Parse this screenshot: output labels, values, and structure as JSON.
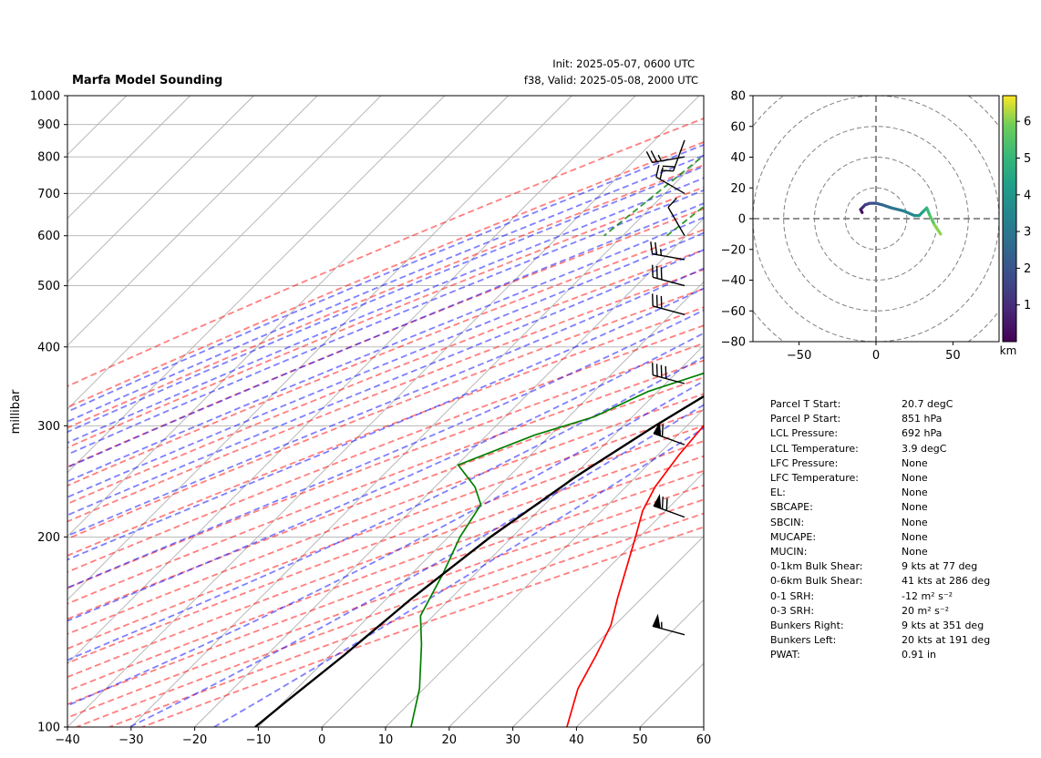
{
  "header": {
    "title": "Marfa Model Sounding",
    "init": "Init: 2025-05-07, 0600 UTC",
    "valid": "f38, Valid: 2025-05-08, 2000 UTC"
  },
  "chart_data": [
    {
      "type": "line",
      "subtype": "skew-t",
      "ylabel": "millibar",
      "xlim": [
        -40,
        60
      ],
      "ylim": [
        1000,
        100
      ],
      "y_scale": "log",
      "x_ticks": [
        -40,
        -30,
        -20,
        -10,
        0,
        10,
        20,
        30,
        40,
        50,
        60
      ],
      "y_ticks": [
        1000,
        900,
        800,
        700,
        600,
        500,
        400,
        300,
        200,
        100
      ],
      "grid": true,
      "series": [
        {
          "color": "#ff0000",
          "points": [
            [
              850,
              27.5
            ],
            [
              800,
              22.2
            ],
            [
              700,
              18.9
            ],
            [
              600,
              18.8
            ],
            [
              560,
              17.2
            ],
            [
              520,
              16.2
            ],
            [
              500,
              16.0
            ],
            [
              450,
              14.7
            ],
            [
              400,
              13.2
            ],
            [
              370,
              12.6
            ],
            [
              340,
              12.4
            ],
            [
              300,
              12.6
            ],
            [
              270,
              13.3
            ],
            [
              240,
              14.6
            ],
            [
              220,
              16.4
            ],
            [
              200,
              19.4
            ],
            [
              180,
              22.6
            ],
            [
              160,
              26.2
            ],
            [
              145,
              29.4
            ],
            [
              130,
              31.8
            ],
            [
              115,
              34.2
            ],
            [
              100,
              38.5
            ]
          ]
        },
        {
          "color": "#008000",
          "points": [
            [
              850,
              13.9
            ],
            [
              800,
              15.9
            ],
            [
              700,
              19.1
            ],
            [
              650,
              18.6
            ],
            [
              600,
              17.9
            ],
            [
              550,
              14.7
            ],
            [
              520,
              14.7
            ],
            [
              490,
              14.7
            ],
            [
              450,
              13.8
            ],
            [
              420,
              12.2
            ],
            [
              400,
              9.7
            ],
            [
              370,
              6.0
            ],
            [
              340,
              -1.5
            ],
            [
              310,
              -6.0
            ],
            [
              290,
              -12.5
            ],
            [
              260,
              -19.8
            ],
            [
              240,
              -13.7
            ],
            [
              225,
              -10.0
            ],
            [
              200,
              -8.2
            ],
            [
              175,
              -5.1
            ],
            [
              150,
              -2.0
            ],
            [
              135,
              2.7
            ],
            [
              115,
              9.3
            ],
            [
              100,
              14.0
            ]
          ]
        },
        {
          "color": "#000000",
          "points": [
            [
              850,
              27.2
            ],
            [
              800,
              22.9
            ],
            [
              700,
              19.5
            ],
            [
              600,
              19.0
            ],
            [
              500,
              17.8
            ],
            [
              450,
              16.0
            ],
            [
              400,
              13.1
            ],
            [
              350,
              9.3
            ],
            [
              300,
              5.0
            ],
            [
              250,
              0.6
            ],
            [
              200,
              -3.4
            ],
            [
              160,
              -6.1
            ],
            [
              130,
              -7.8
            ],
            [
              110,
              -9.6
            ],
            [
              100,
              -10.5
            ]
          ]
        }
      ],
      "barbs": [
        {
          "pressure": 850,
          "speed": 20,
          "direction": 200
        },
        {
          "pressure": 800,
          "speed": 25,
          "direction": 260
        },
        {
          "pressure": 700,
          "speed": 20,
          "direction": 300
        },
        {
          "pressure": 600,
          "speed": 10,
          "direction": 330
        },
        {
          "pressure": 550,
          "speed": 25,
          "direction": 280
        },
        {
          "pressure": 500,
          "speed": 30,
          "direction": 285
        },
        {
          "pressure": 450,
          "speed": 30,
          "direction": 285
        },
        {
          "pressure": 350,
          "speed": 40,
          "direction": 285
        },
        {
          "pressure": 280,
          "speed": 60,
          "direction": 290
        },
        {
          "pressure": 215,
          "speed": 70,
          "direction": 290
        },
        {
          "pressure": 140,
          "speed": 55,
          "direction": 285
        }
      ]
    },
    {
      "type": "line",
      "subtype": "hodograph",
      "xlim": [
        -80,
        80
      ],
      "ylim": [
        -80,
        80
      ],
      "x_ticks": [
        -50,
        0,
        50
      ],
      "y_ticks": [
        -80,
        -60,
        -40,
        -20,
        0,
        20,
        40,
        60,
        80
      ],
      "colorbar": {
        "label": "km",
        "ticks": [
          1,
          2,
          3,
          4,
          5,
          6
        ],
        "range": [
          0,
          6.7
        ]
      },
      "series": [
        {
          "points": [
            [
              -9,
              4
            ],
            [
              -10,
              6
            ],
            [
              -9,
              7
            ],
            [
              -7,
              9
            ],
            [
              -4,
              10
            ],
            [
              0,
              10
            ],
            [
              4,
              9
            ],
            [
              10,
              7
            ],
            [
              18,
              5
            ],
            [
              25,
              2
            ],
            [
              28,
              2
            ],
            [
              31,
              5
            ],
            [
              33,
              7
            ],
            [
              35,
              2
            ],
            [
              38,
              -4
            ],
            [
              42,
              -10
            ]
          ],
          "heights_km": [
            0.1,
            0.4,
            0.8,
            1.2,
            1.6,
            2.0,
            2.4,
            2.8,
            3.2,
            3.6,
            4.0,
            4.4,
            4.8,
            5.3,
            5.8,
            6.3
          ]
        }
      ]
    }
  ],
  "params": [
    {
      "label": "Parcel T Start:",
      "value": "20.7 degC"
    },
    {
      "label": "Parcel P Start:",
      "value": "851 hPa"
    },
    {
      "label": "LCL Pressure:",
      "value": "692 hPa"
    },
    {
      "label": "LCL Temperature:",
      "value": "3.9 degC"
    },
    {
      "label": "LFC Pressure:",
      "value": "None"
    },
    {
      "label": "LFC Temperature:",
      "value": "None"
    },
    {
      "label": "EL:",
      "value": "None"
    },
    {
      "label": "SBCAPE:",
      "value": "None"
    },
    {
      "label": "SBCIN:",
      "value": "None"
    },
    {
      "label": "MUCAPE:",
      "value": "None"
    },
    {
      "label": "MUCIN:",
      "value": "None"
    },
    {
      "label": "0-1km Bulk Shear:",
      "value": "9 kts at 77 deg"
    },
    {
      "label": "0-6km Bulk Shear:",
      "value": "41 kts at 286 deg"
    },
    {
      "label": "0-1 SRH:",
      "value": "-12 m² s⁻²"
    },
    {
      "label": "0-3 SRH:",
      "value": "20 m² s⁻²"
    },
    {
      "label": "Bunkers Right:",
      "value": "9 kts at 351 deg"
    },
    {
      "label": "Bunkers Left:",
      "value": "20 kts at 191 deg"
    },
    {
      "label": "PWAT:",
      "value": "0.91 in"
    }
  ]
}
